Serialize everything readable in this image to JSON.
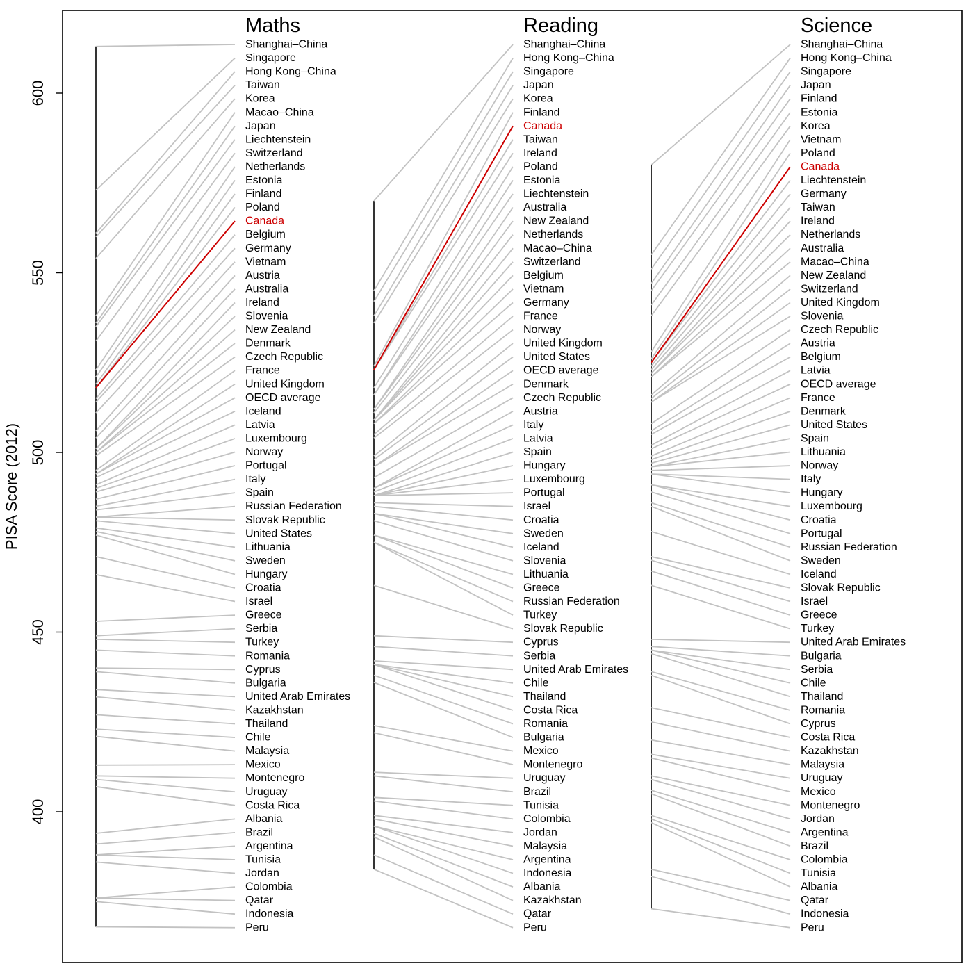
{
  "chart_data": {
    "type": "slopegraph",
    "ylabel": "PISA Score (2012)",
    "yticks": [
      400,
      450,
      500,
      550,
      600
    ],
    "highlight": {
      "name": "Canada",
      "color": "#cc0000"
    },
    "colors": {
      "line": "#c2c2c2",
      "axis": "#000000",
      "text": "#000000"
    },
    "panels": [
      {
        "title": "Maths",
        "rows": [
          {
            "name": "Shanghai–China",
            "value": 613
          },
          {
            "name": "Singapore",
            "value": 573
          },
          {
            "name": "Hong Kong–China",
            "value": 561
          },
          {
            "name": "Taiwan",
            "value": 560
          },
          {
            "name": "Korea",
            "value": 554
          },
          {
            "name": "Macao–China",
            "value": 538
          },
          {
            "name": "Japan",
            "value": 536
          },
          {
            "name": "Liechtenstein",
            "value": 535
          },
          {
            "name": "Switzerland",
            "value": 531
          },
          {
            "name": "Netherlands",
            "value": 523
          },
          {
            "name": "Estonia",
            "value": 521
          },
          {
            "name": "Finland",
            "value": 519
          },
          {
            "name": "Poland",
            "value": 518
          },
          {
            "name": "Canada",
            "value": 518
          },
          {
            "name": "Belgium",
            "value": 515
          },
          {
            "name": "Germany",
            "value": 514
          },
          {
            "name": "Vietnam",
            "value": 511
          },
          {
            "name": "Austria",
            "value": 506
          },
          {
            "name": "Australia",
            "value": 504
          },
          {
            "name": "Ireland",
            "value": 501
          },
          {
            "name": "Slovenia",
            "value": 501
          },
          {
            "name": "New Zealand",
            "value": 500
          },
          {
            "name": "Denmark",
            "value": 500
          },
          {
            "name": "Czech Republic",
            "value": 499
          },
          {
            "name": "France",
            "value": 495
          },
          {
            "name": "United Kingdom",
            "value": 494
          },
          {
            "name": "OECD average",
            "value": 494
          },
          {
            "name": "Iceland",
            "value": 493
          },
          {
            "name": "Latvia",
            "value": 491
          },
          {
            "name": "Luxembourg",
            "value": 490
          },
          {
            "name": "Norway",
            "value": 489
          },
          {
            "name": "Portugal",
            "value": 487
          },
          {
            "name": "Italy",
            "value": 485
          },
          {
            "name": "Spain",
            "value": 484
          },
          {
            "name": "Russian Federation",
            "value": 482
          },
          {
            "name": "Slovak Republic",
            "value": 482
          },
          {
            "name": "United States",
            "value": 481
          },
          {
            "name": "Lithuania",
            "value": 479
          },
          {
            "name": "Sweden",
            "value": 478
          },
          {
            "name": "Hungary",
            "value": 477
          },
          {
            "name": "Croatia",
            "value": 471
          },
          {
            "name": "Israel",
            "value": 466
          },
          {
            "name": "Greece",
            "value": 453
          },
          {
            "name": "Serbia",
            "value": 449
          },
          {
            "name": "Turkey",
            "value": 448
          },
          {
            "name": "Romania",
            "value": 445
          },
          {
            "name": "Cyprus",
            "value": 440
          },
          {
            "name": "Bulgaria",
            "value": 439
          },
          {
            "name": "United Arab Emirates",
            "value": 434
          },
          {
            "name": "Kazakhstan",
            "value": 432
          },
          {
            "name": "Thailand",
            "value": 427
          },
          {
            "name": "Chile",
            "value": 423
          },
          {
            "name": "Malaysia",
            "value": 421
          },
          {
            "name": "Mexico",
            "value": 413
          },
          {
            "name": "Montenegro",
            "value": 410
          },
          {
            "name": "Uruguay",
            "value": 409
          },
          {
            "name": "Costa Rica",
            "value": 407
          },
          {
            "name": "Albania",
            "value": 394
          },
          {
            "name": "Brazil",
            "value": 391
          },
          {
            "name": "Argentina",
            "value": 388
          },
          {
            "name": "Tunisia",
            "value": 388
          },
          {
            "name": "Jordan",
            "value": 386
          },
          {
            "name": "Colombia",
            "value": 376
          },
          {
            "name": "Qatar",
            "value": 376
          },
          {
            "name": "Indonesia",
            "value": 375
          },
          {
            "name": "Peru",
            "value": 368
          }
        ]
      },
      {
        "title": "Reading",
        "rows": [
          {
            "name": "Shanghai–China",
            "value": 570
          },
          {
            "name": "Hong Kong–China",
            "value": 545
          },
          {
            "name": "Singapore",
            "value": 542
          },
          {
            "name": "Japan",
            "value": 538
          },
          {
            "name": "Korea",
            "value": 536
          },
          {
            "name": "Finland",
            "value": 524
          },
          {
            "name": "Canada",
            "value": 523
          },
          {
            "name": "Taiwan",
            "value": 523
          },
          {
            "name": "Ireland",
            "value": 523
          },
          {
            "name": "Poland",
            "value": 518
          },
          {
            "name": "Estonia",
            "value": 516
          },
          {
            "name": "Liechtenstein",
            "value": 516
          },
          {
            "name": "Australia",
            "value": 512
          },
          {
            "name": "New Zealand",
            "value": 512
          },
          {
            "name": "Netherlands",
            "value": 511
          },
          {
            "name": "Macao–China",
            "value": 509
          },
          {
            "name": "Switzerland",
            "value": 509
          },
          {
            "name": "Belgium",
            "value": 509
          },
          {
            "name": "Vietnam",
            "value": 508
          },
          {
            "name": "Germany",
            "value": 508
          },
          {
            "name": "France",
            "value": 505
          },
          {
            "name": "Norway",
            "value": 504
          },
          {
            "name": "United Kingdom",
            "value": 499
          },
          {
            "name": "United States",
            "value": 498
          },
          {
            "name": "OECD average",
            "value": 496
          },
          {
            "name": "Denmark",
            "value": 496
          },
          {
            "name": "Czech Republic",
            "value": 493
          },
          {
            "name": "Austria",
            "value": 490
          },
          {
            "name": "Italy",
            "value": 490
          },
          {
            "name": "Latvia",
            "value": 489
          },
          {
            "name": "Spain",
            "value": 488
          },
          {
            "name": "Hungary",
            "value": 488
          },
          {
            "name": "Luxembourg",
            "value": 488
          },
          {
            "name": "Portugal",
            "value": 488
          },
          {
            "name": "Israel",
            "value": 486
          },
          {
            "name": "Croatia",
            "value": 485
          },
          {
            "name": "Sweden",
            "value": 483
          },
          {
            "name": "Iceland",
            "value": 483
          },
          {
            "name": "Slovenia",
            "value": 481
          },
          {
            "name": "Lithuania",
            "value": 477
          },
          {
            "name": "Greece",
            "value": 477
          },
          {
            "name": "Russian Federation",
            "value": 475
          },
          {
            "name": "Turkey",
            "value": 475
          },
          {
            "name": "Slovak Republic",
            "value": 463
          },
          {
            "name": "Cyprus",
            "value": 449
          },
          {
            "name": "Serbia",
            "value": 446
          },
          {
            "name": "United Arab Emirates",
            "value": 442
          },
          {
            "name": "Chile",
            "value": 441
          },
          {
            "name": "Thailand",
            "value": 441
          },
          {
            "name": "Costa Rica",
            "value": 441
          },
          {
            "name": "Romania",
            "value": 438
          },
          {
            "name": "Bulgaria",
            "value": 436
          },
          {
            "name": "Mexico",
            "value": 424
          },
          {
            "name": "Montenegro",
            "value": 422
          },
          {
            "name": "Uruguay",
            "value": 411
          },
          {
            "name": "Brazil",
            "value": 410
          },
          {
            "name": "Tunisia",
            "value": 404
          },
          {
            "name": "Colombia",
            "value": 403
          },
          {
            "name": "Jordan",
            "value": 399
          },
          {
            "name": "Malaysia",
            "value": 398
          },
          {
            "name": "Argentina",
            "value": 396
          },
          {
            "name": "Indonesia",
            "value": 396
          },
          {
            "name": "Albania",
            "value": 394
          },
          {
            "name": "Kazakhstan",
            "value": 393
          },
          {
            "name": "Qatar",
            "value": 388
          },
          {
            "name": "Peru",
            "value": 384
          }
        ]
      },
      {
        "title": "Science",
        "rows": [
          {
            "name": "Shanghai–China",
            "value": 580
          },
          {
            "name": "Hong Kong–China",
            "value": 555
          },
          {
            "name": "Singapore",
            "value": 551
          },
          {
            "name": "Japan",
            "value": 547
          },
          {
            "name": "Finland",
            "value": 545
          },
          {
            "name": "Estonia",
            "value": 541
          },
          {
            "name": "Korea",
            "value": 538
          },
          {
            "name": "Vietnam",
            "value": 528
          },
          {
            "name": "Poland",
            "value": 526
          },
          {
            "name": "Canada",
            "value": 525
          },
          {
            "name": "Liechtenstein",
            "value": 525
          },
          {
            "name": "Germany",
            "value": 524
          },
          {
            "name": "Taiwan",
            "value": 523
          },
          {
            "name": "Ireland",
            "value": 522
          },
          {
            "name": "Netherlands",
            "value": 522
          },
          {
            "name": "Australia",
            "value": 521
          },
          {
            "name": "Macao–China",
            "value": 521
          },
          {
            "name": "New Zealand",
            "value": 516
          },
          {
            "name": "Switzerland",
            "value": 515
          },
          {
            "name": "United Kingdom",
            "value": 514
          },
          {
            "name": "Slovenia",
            "value": 514
          },
          {
            "name": "Czech Republic",
            "value": 508
          },
          {
            "name": "Austria",
            "value": 506
          },
          {
            "name": "Belgium",
            "value": 505
          },
          {
            "name": "Latvia",
            "value": 502
          },
          {
            "name": "OECD average",
            "value": 501
          },
          {
            "name": "France",
            "value": 499
          },
          {
            "name": "Denmark",
            "value": 498
          },
          {
            "name": "United States",
            "value": 497
          },
          {
            "name": "Spain",
            "value": 496
          },
          {
            "name": "Lithuania",
            "value": 496
          },
          {
            "name": "Norway",
            "value": 495
          },
          {
            "name": "Italy",
            "value": 494
          },
          {
            "name": "Hungary",
            "value": 494
          },
          {
            "name": "Luxembourg",
            "value": 491
          },
          {
            "name": "Croatia",
            "value": 491
          },
          {
            "name": "Portugal",
            "value": 489
          },
          {
            "name": "Russian Federation",
            "value": 486
          },
          {
            "name": "Sweden",
            "value": 485
          },
          {
            "name": "Iceland",
            "value": 478
          },
          {
            "name": "Slovak Republic",
            "value": 471
          },
          {
            "name": "Israel",
            "value": 470
          },
          {
            "name": "Greece",
            "value": 467
          },
          {
            "name": "Turkey",
            "value": 463
          },
          {
            "name": "United Arab Emirates",
            "value": 448
          },
          {
            "name": "Bulgaria",
            "value": 446
          },
          {
            "name": "Serbia",
            "value": 445
          },
          {
            "name": "Chile",
            "value": 445
          },
          {
            "name": "Thailand",
            "value": 444
          },
          {
            "name": "Romania",
            "value": 439
          },
          {
            "name": "Cyprus",
            "value": 438
          },
          {
            "name": "Costa Rica",
            "value": 429
          },
          {
            "name": "Kazakhstan",
            "value": 425
          },
          {
            "name": "Malaysia",
            "value": 420
          },
          {
            "name": "Uruguay",
            "value": 416
          },
          {
            "name": "Mexico",
            "value": 415
          },
          {
            "name": "Montenegro",
            "value": 410
          },
          {
            "name": "Jordan",
            "value": 409
          },
          {
            "name": "Argentina",
            "value": 406
          },
          {
            "name": "Brazil",
            "value": 405
          },
          {
            "name": "Colombia",
            "value": 399
          },
          {
            "name": "Tunisia",
            "value": 398
          },
          {
            "name": "Albania",
            "value": 397
          },
          {
            "name": "Qatar",
            "value": 384
          },
          {
            "name": "Indonesia",
            "value": 382
          },
          {
            "name": "Peru",
            "value": 373
          }
        ]
      }
    ]
  }
}
